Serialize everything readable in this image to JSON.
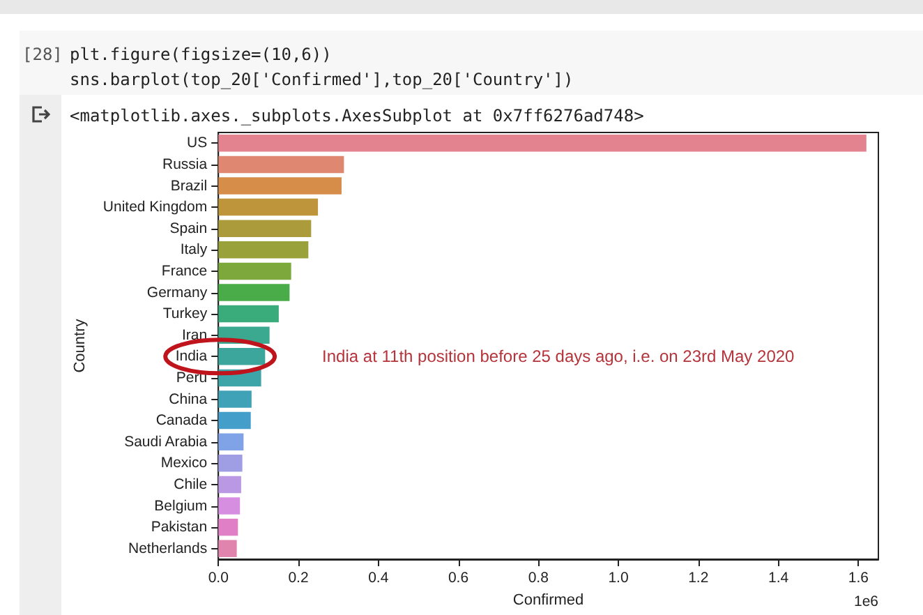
{
  "chart_data": {
    "type": "bar",
    "orientation": "horizontal",
    "xlabel": "Confirmed",
    "ylabel": "Country",
    "categories": [
      "US",
      "Russia",
      "Brazil",
      "United Kingdom",
      "Spain",
      "Italy",
      "France",
      "Germany",
      "Turkey",
      "Iran",
      "India",
      "Peru",
      "China",
      "Canada",
      "Saudi Arabia",
      "Mexico",
      "Chile",
      "Belgium",
      "Pakistan",
      "Netherlands"
    ],
    "values": [
      1.62,
      0.314,
      0.308,
      0.249,
      0.232,
      0.225,
      0.182,
      0.178,
      0.151,
      0.128,
      0.117,
      0.107,
      0.083,
      0.081,
      0.063,
      0.06,
      0.057,
      0.054,
      0.049,
      0.046
    ],
    "colors": [
      "#e3838f",
      "#df8770",
      "#d68d4a",
      "#bf953b",
      "#ab9b3a",
      "#98a13a",
      "#7da83c",
      "#4aac48",
      "#3aab7b",
      "#3ba890",
      "#3ca69c",
      "#3da4a8",
      "#3fa2b7",
      "#439ec9",
      "#7fa3e6",
      "#9f9ee5",
      "#ba98e3",
      "#d68ee0",
      "#e07fc6",
      "#e184ad"
    ],
    "xlim": [
      0,
      1.65
    ],
    "xticks": [
      {
        "value": 0,
        "label": "0.0"
      },
      0.2,
      0.4,
      0.6,
      0.8,
      {
        "value": 1,
        "label": "1.0"
      },
      1.2,
      1.4,
      1.6
    ],
    "grid": false,
    "annotations": [
      "[28]",
      "plt.figure(figsize=(10,6))",
      "sns.barplot(top_20['Confirmed'],top_20['Country'])",
      "<matplotlib.axes._subplots.AxesSubplot at 0x7ff6276ad748>",
      "India at 11th position before 25 days ago, i.e. on 23rd May 2020",
      "1e6"
    ]
  }
}
